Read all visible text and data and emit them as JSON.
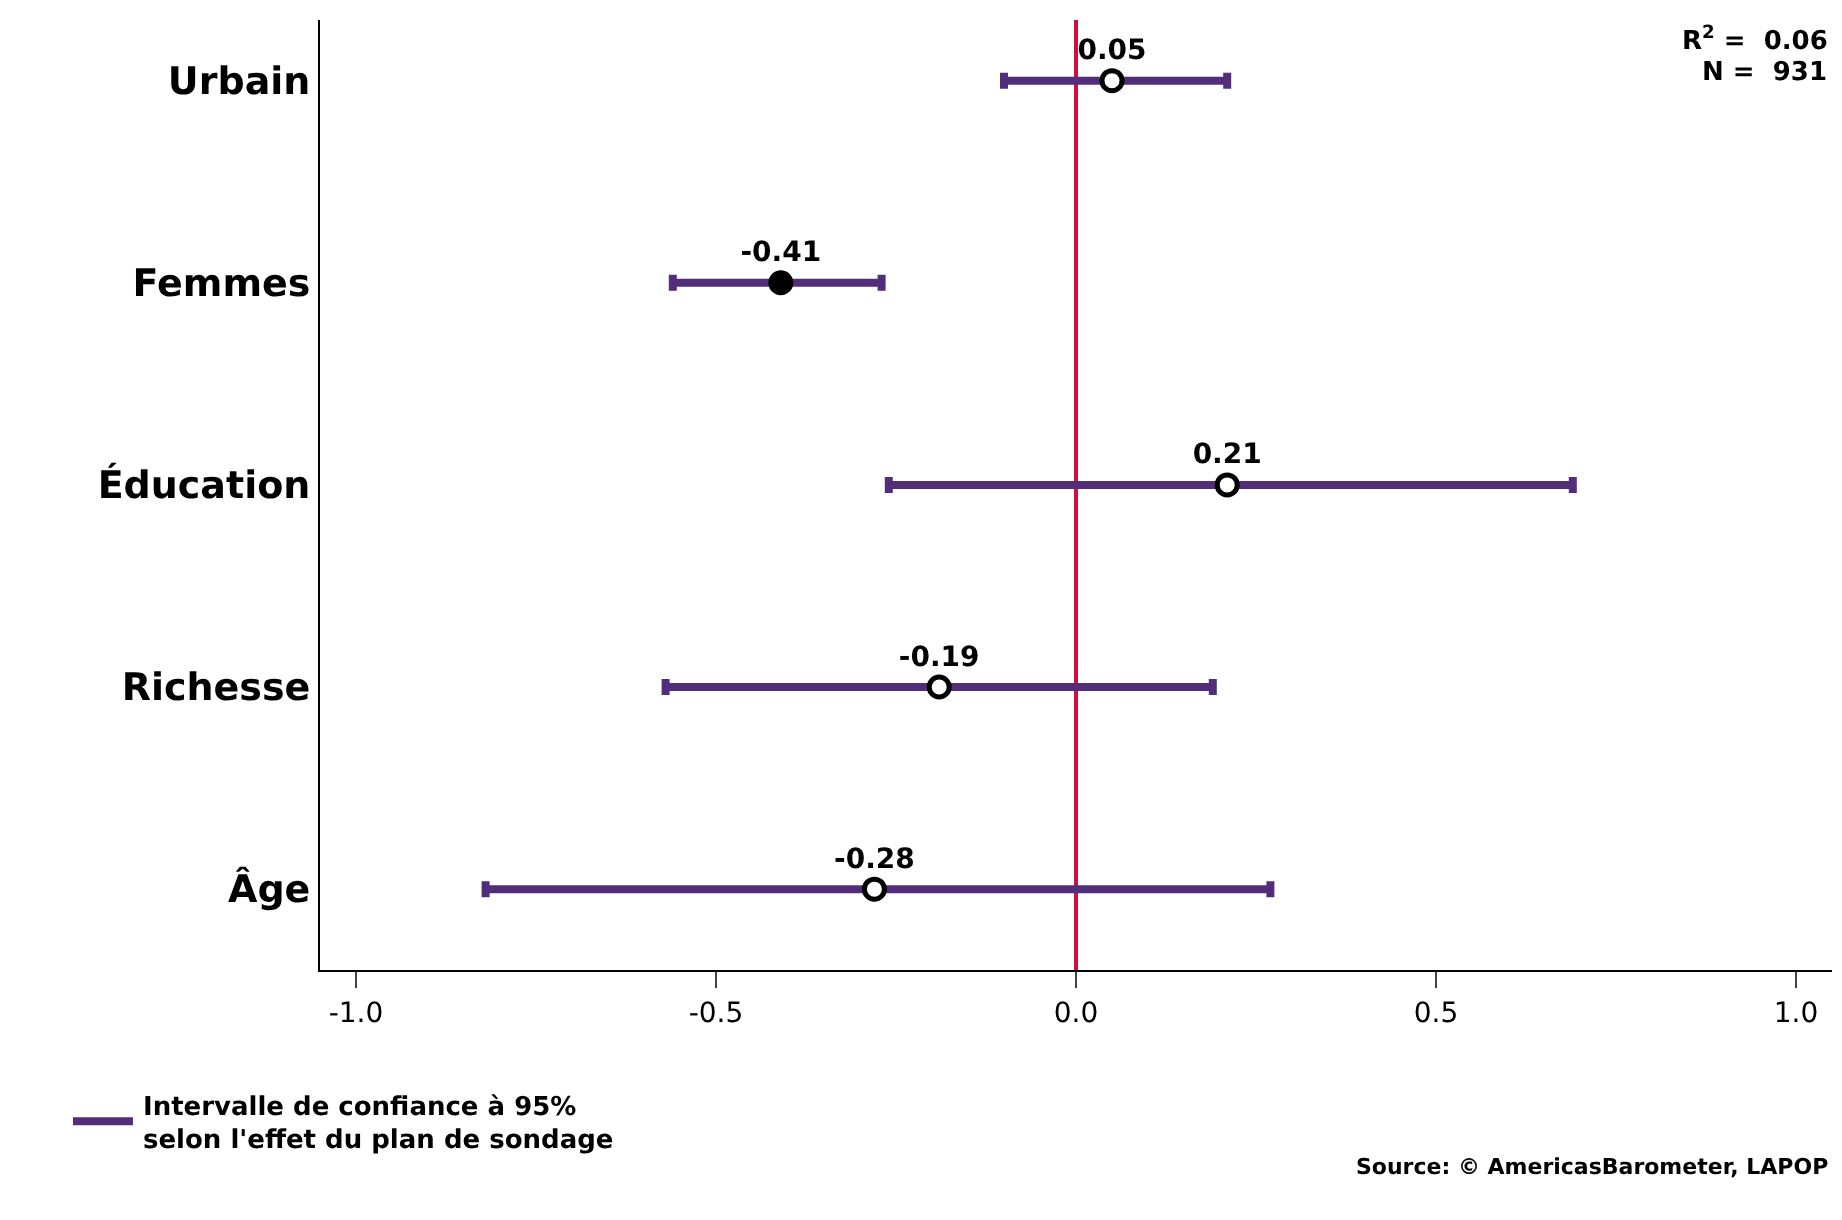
{
  "chart_data": {
    "type": "scatter",
    "orientation": "horizontal",
    "categories": [
      "Urbain",
      "Femmes",
      "Éducation",
      "Richesse",
      "Âge"
    ],
    "series": [
      {
        "name": "Intervalle de confiance à 95%\nselon l'effet du plan de sondage",
        "color": "#512d7a",
        "values": [
          0.05,
          -0.41,
          0.21,
          -0.19,
          -0.28
        ],
        "errors": [
          [
            -0.1,
            0.21
          ],
          [
            -0.56,
            -0.27
          ],
          [
            -0.26,
            0.69
          ],
          [
            -0.57,
            0.19
          ],
          [
            -0.82,
            0.27
          ]
        ],
        "colors": [
          "#ffffff",
          "#000000",
          "#ffffff",
          "#ffffff",
          "#ffffff"
        ]
      }
    ],
    "data_labels": true,
    "marker": "circle",
    "xlim": [
      -1.05,
      1.05
    ],
    "xticks": [
      {
        "value": -1,
        "label": "-1.0"
      },
      {
        "value": -0.5,
        "label": "-0.5"
      },
      {
        "value": 0,
        "label": "0.0"
      },
      {
        "value": 0.5,
        "label": "0.5"
      },
      {
        "value": 1,
        "label": "1.0"
      }
    ],
    "ref_lines": [
      {
        "axis": "x",
        "value": 0,
        "color": "#d0103a"
      }
    ],
    "grid": false,
    "legend": "bottom left",
    "annotations": [
      "R$^{2}$ =  0.06",
      "N =  931",
      "Source: © AmericasBarometer, LAPOP"
    ]
  }
}
